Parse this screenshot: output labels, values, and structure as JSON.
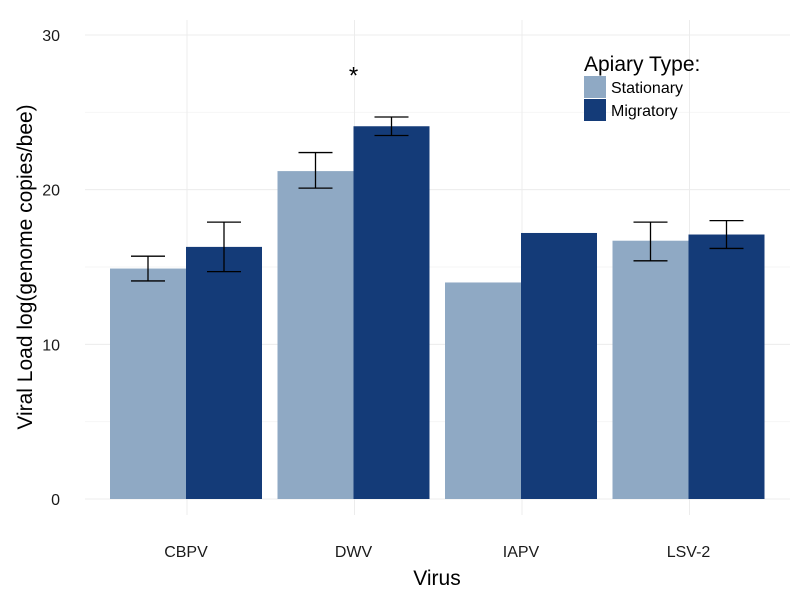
{
  "chart_data": {
    "type": "bar",
    "title": "",
    "xlabel": "Virus",
    "ylabel": "Viral Load log(genome copies/bee)",
    "categories": [
      "CBPV",
      "DWV",
      "IAPV",
      "LSV-2"
    ],
    "ylim": [
      0,
      30
    ],
    "yticks": [
      0,
      10,
      20,
      30
    ],
    "grid": true,
    "legend": {
      "title": "Apiary Type:",
      "placement": "top-right"
    },
    "series": [
      {
        "name": "Stationary",
        "color": "#8fa9c4",
        "values": [
          14.9,
          21.2,
          14.0,
          16.7
        ],
        "error_low": [
          14.1,
          20.1,
          null,
          15.4
        ],
        "error_high": [
          15.7,
          22.4,
          null,
          17.9
        ]
      },
      {
        "name": "Migratory",
        "color": "#143b78",
        "values": [
          16.3,
          24.1,
          17.2,
          17.1
        ],
        "error_low": [
          14.7,
          23.5,
          null,
          16.2
        ],
        "error_high": [
          17.9,
          24.7,
          null,
          18.0
        ]
      }
    ],
    "annotations": [
      {
        "text": "*",
        "category": "DWV",
        "y": 27.5
      }
    ]
  }
}
